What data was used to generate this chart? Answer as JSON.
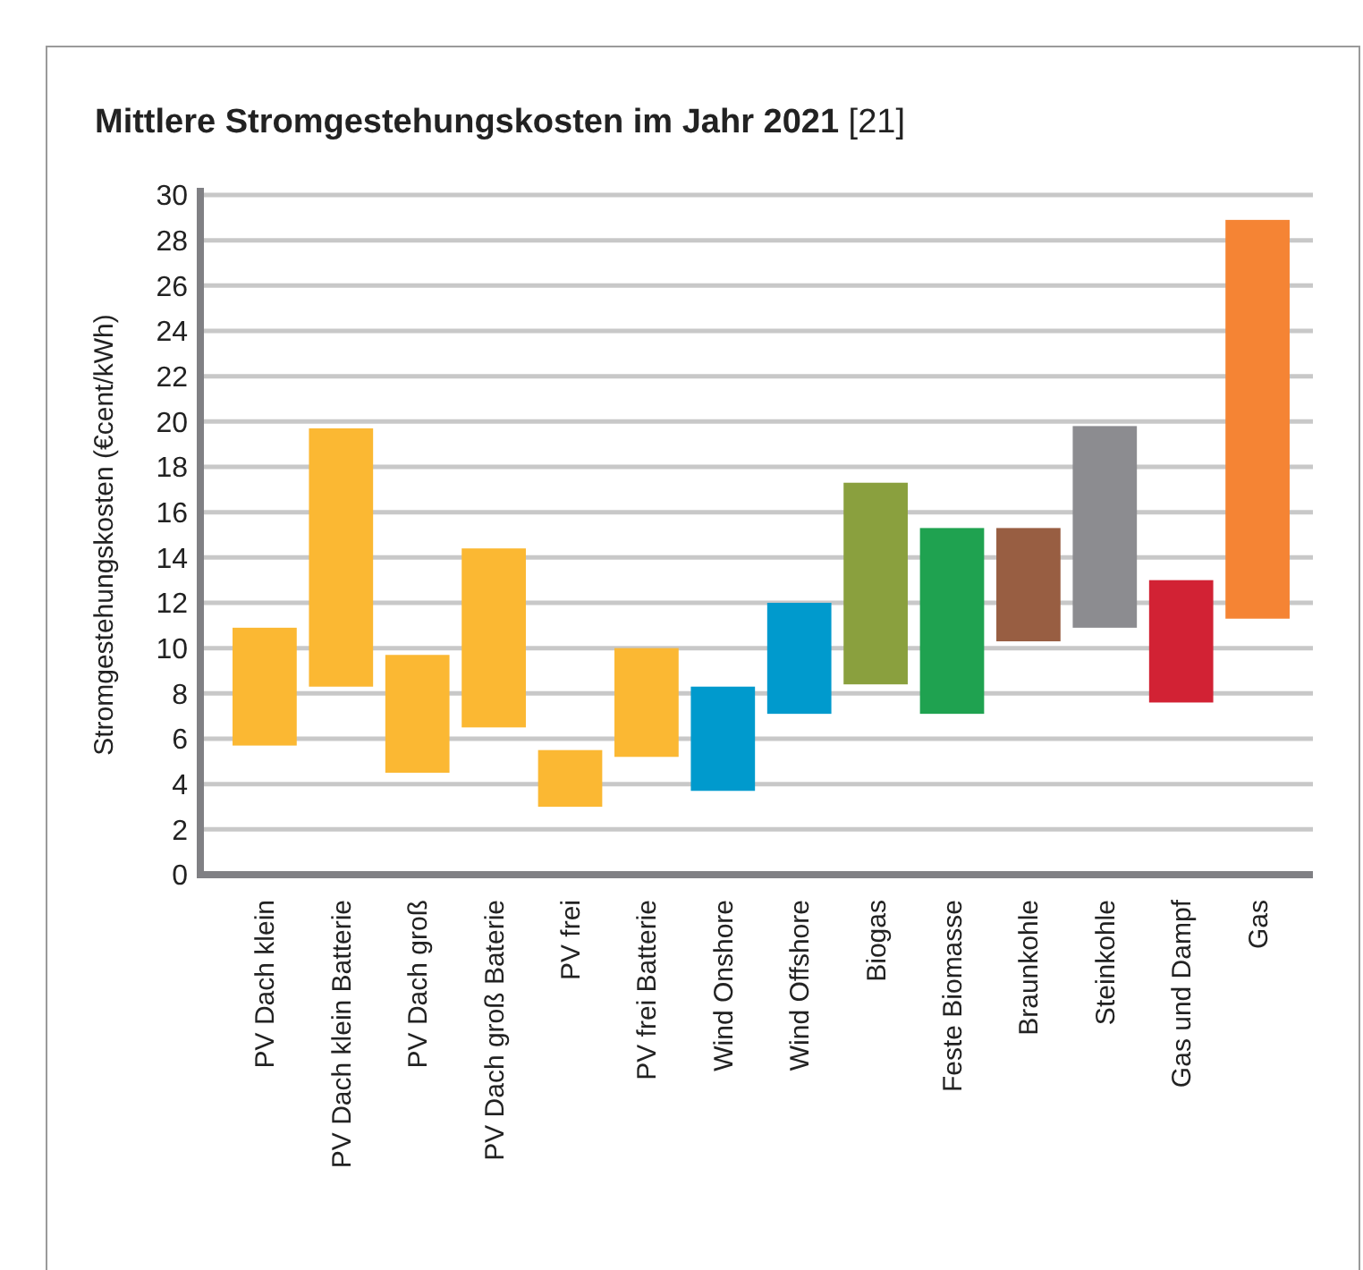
{
  "chart_data": {
    "type": "bar",
    "title": "Mittlere Stromgestehungskosten im Jahr 2021 [21]",
    "ylabel": "Stromgestehungskosten (€cent/kWh)",
    "categories": [
      "PV Dach klein",
      "PV Dach klein Batterie",
      "PV Dach groß",
      "PV Dach groß Baterie",
      "PV frei",
      "PV frei Batterie",
      "Wind Onshore",
      "Wind Offshore",
      "Biogas",
      "Feste Biomasse",
      "Braunkohle",
      "Steinkohle",
      "Gas und Dampf",
      "Gas"
    ],
    "base": [
      5.7,
      8.3,
      4.5,
      6.5,
      3.0,
      5.2,
      3.7,
      7.1,
      8.4,
      7.1,
      10.3,
      10.9,
      7.6,
      11.3
    ],
    "values": [
      5.2,
      11.4,
      5.2,
      7.9,
      2.5,
      4.8,
      4.6,
      4.9,
      8.9,
      8.2,
      5.0,
      8.9,
      5.4,
      17.6
    ],
    "colors": [
      "#fbb833",
      "#fbb833",
      "#fbb833",
      "#fbb833",
      "#fbb833",
      "#fbb833",
      "#009acd",
      "#009acd",
      "#8aa03e",
      "#1fa250",
      "#985e42",
      "#8c8c90",
      "#d22234",
      "#f58434"
    ],
    "ylim": [
      0,
      30
    ],
    "yticks": [
      0,
      2,
      4,
      6,
      8,
      10,
      12,
      14,
      16,
      18,
      20,
      22,
      24,
      26,
      28,
      30
    ],
    "grid": "y"
  }
}
